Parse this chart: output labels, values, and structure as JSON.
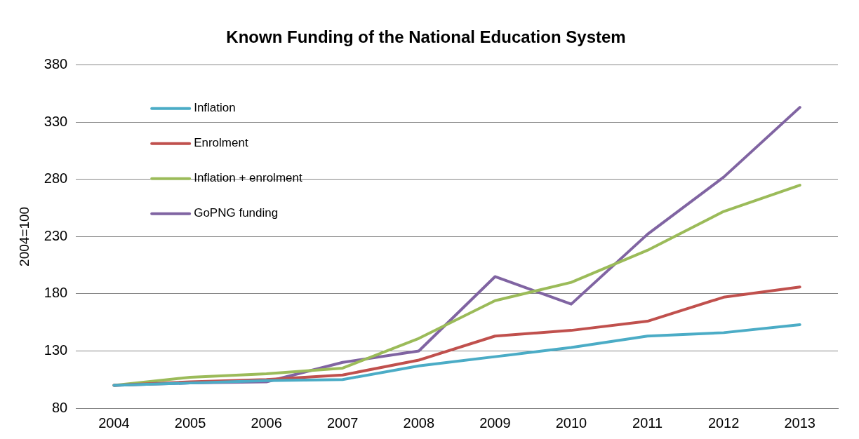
{
  "chart_data": {
    "type": "line",
    "title": "Known Funding of the National Education System",
    "ylabel": "2004=100",
    "categories": [
      "2004",
      "2005",
      "2006",
      "2007",
      "2008",
      "2009",
      "2010",
      "2011",
      "2012",
      "2013"
    ],
    "series": [
      {
        "name": "Inflation",
        "color": "#4bacc6",
        "values": [
          100,
          102,
          104,
          105,
          117,
          125,
          133,
          143,
          146,
          153
        ]
      },
      {
        "name": "Enrolment",
        "color": "#c0504d",
        "values": [
          100,
          103,
          105,
          109,
          122,
          143,
          148,
          156,
          177,
          186
        ]
      },
      {
        "name": "Inflation + enrolment",
        "color": "#9bbb59",
        "values": [
          100,
          107,
          110,
          115,
          141,
          174,
          190,
          218,
          252,
          275
        ]
      },
      {
        "name": "GoPNG funding",
        "color": "#8064a2",
        "values": [
          100,
          102,
          103,
          120,
          130,
          195,
          171,
          232,
          282,
          343
        ]
      }
    ],
    "ylim": [
      80,
      380
    ],
    "yticks": [
      80,
      130,
      180,
      230,
      280,
      330,
      380
    ],
    "grid": "y",
    "legend": "top left",
    "marker": "none",
    "line_style": "solid"
  }
}
